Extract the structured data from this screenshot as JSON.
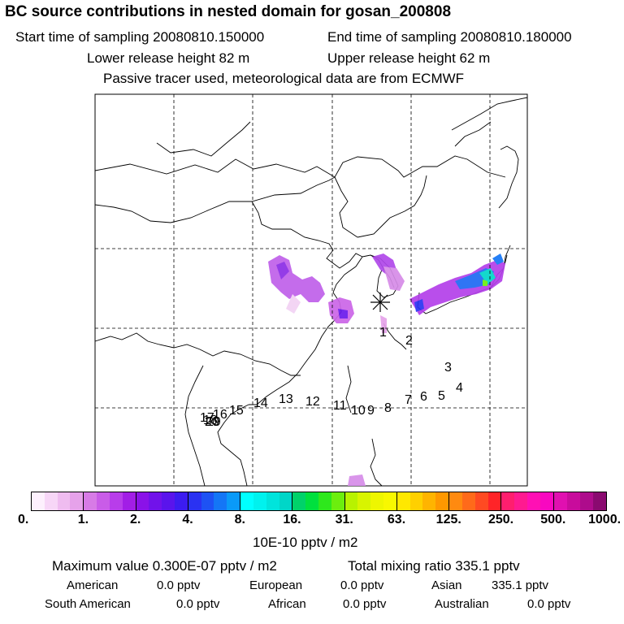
{
  "header": {
    "title": "BC  source contributions in nested domain for gosan_200808",
    "start_time": "Start time of sampling 20080810.150000",
    "end_time": "End time of sampling 20080810.180000",
    "lower_height": "Lower release height   82 m",
    "upper_height": "Upper release height   62 m",
    "tracer_note": "Passive tracer used, meteorological data are from ECMWF"
  },
  "trajectory_labels": [
    "1",
    "2",
    "3",
    "4",
    "5",
    "6",
    "7",
    "8",
    "9",
    "10",
    "11",
    "12",
    "13",
    "14",
    "15",
    "16",
    "17",
    "18",
    "19",
    "20"
  ],
  "colorbar": {
    "ticks": [
      "0.",
      "1.",
      "2.",
      "4.",
      "8.",
      "16.",
      "31.",
      "63.",
      "125.",
      "250.",
      "500.",
      "1000."
    ],
    "segments": [
      [
        "#fdf0fd",
        "#f7d6f7",
        "#efbcf0",
        "#e6a2ea"
      ],
      [
        "#d77be6",
        "#c95ce8",
        "#b83dea",
        "#a21ee6"
      ],
      [
        "#8a12e8",
        "#7112ea",
        "#5a14ec",
        "#3c1cf0"
      ],
      [
        "#2a32f2",
        "#1e52f4",
        "#1476f6",
        "#0a9af8"
      ],
      [
        "#00ffff",
        "#00f2ee",
        "#00e4dc",
        "#00d6c8"
      ],
      [
        "#00d26a",
        "#00e03e",
        "#2ee81c",
        "#6cee0e"
      ],
      [
        "#b8f200",
        "#d8f400",
        "#eef600",
        "#f8f800"
      ],
      [
        "#ffe800",
        "#ffd000",
        "#ffb400",
        "#ff9800"
      ],
      [
        "#ff8a10",
        "#ff6a1a",
        "#ff4a22",
        "#ff2428"
      ],
      [
        "#ff1e6e",
        "#ff1a90",
        "#ff10b4",
        "#f808c0"
      ],
      [
        "#e010b0",
        "#c80c9c",
        "#ae0c8c",
        "#8a0a70"
      ]
    ],
    "unit_label": "10E-10 pptv / m2"
  },
  "summary": {
    "max_value": "Maximum value  0.300E-07 pptv / m2",
    "total_mixing": "Total mixing ratio      335.1 pptv"
  },
  "regions": {
    "american_label": "American",
    "american_value": "0.0 pptv",
    "european_label": "European",
    "european_value": "0.0 pptv",
    "asian_label": "Asian",
    "asian_value": "335.1 pptv",
    "south_american_label": "South American",
    "south_american_value": "0.0 pptv",
    "african_label": "African",
    "african_value": "0.0 pptv",
    "australian_label": "Australian",
    "australian_value": "0.0 pptv"
  }
}
